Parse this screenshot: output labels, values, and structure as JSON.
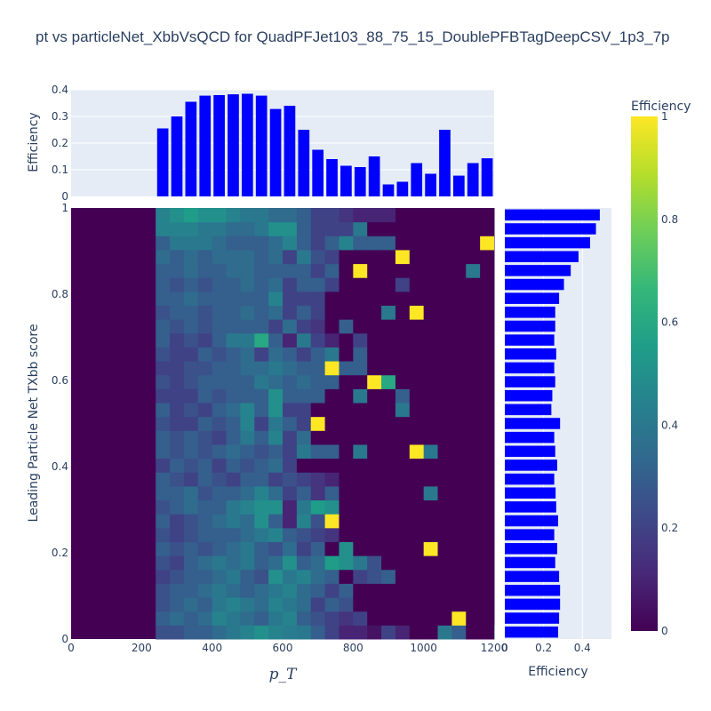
{
  "chart_data": {
    "type": "heatmap",
    "title": "pt vs particleNet_XbbVsQCD for QuadPFJet103_88_75_15_DoublePFBTagDeepCSV_1p3_7p",
    "xlabel": "p_T",
    "ylabel": "Leading Particle Net TXbb score",
    "xlim": [
      0,
      1200
    ],
    "ylim": [
      0,
      1
    ],
    "x_ticks": [
      "0",
      "200",
      "400",
      "600",
      "800",
      "1000",
      "1200"
    ],
    "y_ticks": [
      "0",
      "0.2",
      "0.4",
      "0.6",
      "0.8",
      "1"
    ],
    "colorbar": {
      "title": "Efficiency",
      "range": [
        0,
        1
      ],
      "ticks": [
        "0",
        "0.2",
        "0.4",
        "0.6",
        "0.8",
        "1"
      ]
    },
    "top_histogram": {
      "ylabel": "Efficiency",
      "ylim": [
        0,
        0.4
      ],
      "y_ticks": [
        "0",
        "0.1",
        "0.2",
        "0.3",
        "0.4"
      ],
      "bin_width": 40,
      "x_start": 0,
      "values": [
        0,
        0,
        0,
        0,
        0,
        0,
        0.255,
        0.3,
        0.355,
        0.378,
        0.38,
        0.383,
        0.385,
        0.378,
        0.328,
        0.34,
        0.25,
        0.175,
        0.14,
        0.115,
        0.11,
        0.15,
        0.045,
        0.055,
        0.125,
        0.085,
        0.25,
        0.078,
        0.125,
        0.143
      ],
      "color": "#0000ff"
    },
    "right_histogram": {
      "xlabel": "Efficiency",
      "xlim": [
        0,
        0.55
      ],
      "x_ticks": [
        "0",
        "0.2",
        "0.4"
      ],
      "bin_height": 0.0333,
      "values": [
        0.275,
        0.28,
        0.285,
        0.285,
        0.28,
        0.26,
        0.27,
        0.255,
        0.275,
        0.265,
        0.262,
        0.255,
        0.27,
        0.26,
        0.255,
        0.285,
        0.24,
        0.245,
        0.26,
        0.255,
        0.265,
        0.255,
        0.26,
        0.26,
        0.28,
        0.305,
        0.34,
        0.38,
        0.44,
        0.47,
        0.49
      ],
      "color": "#0000ff"
    },
    "heatmap": {
      "x_bin_width": 40,
      "y_bin_height": 0.0333,
      "columns_start": 240,
      "rows_bottom_to_top": [
        [
          0.25,
          0.25,
          0.3,
          0.3,
          0.35,
          0.4,
          0.45,
          0.5,
          0.45,
          0.42,
          0.4,
          0.3,
          0.2,
          0.1,
          0.1,
          0.05,
          0.2,
          0.1,
          0,
          0,
          0.4,
          0.3,
          0,
          0,
          0.3
        ],
        [
          0.3,
          0.35,
          0.3,
          0.35,
          0.45,
          0.4,
          0.35,
          0.3,
          0.4,
          0.45,
          0.3,
          0.25,
          0.2,
          0.15,
          0.2,
          0,
          0,
          0,
          0,
          0,
          0,
          1,
          0,
          0,
          0
        ],
        [
          0.25,
          0.3,
          0.35,
          0.3,
          0.4,
          0.45,
          0.4,
          0.35,
          0.45,
          0.4,
          0.35,
          0.2,
          0.3,
          0.25,
          0,
          0,
          0,
          0,
          0,
          0,
          0,
          0,
          0,
          0,
          0
        ],
        [
          0.25,
          0.3,
          0.3,
          0.35,
          0.4,
          0.35,
          0.3,
          0.35,
          0.4,
          0.45,
          0.35,
          0.3,
          0.2,
          0.3,
          0,
          0,
          0,
          0,
          0,
          0,
          0,
          0,
          0,
          0,
          0
        ],
        [
          0.2,
          0.25,
          0.3,
          0.3,
          0.35,
          0.4,
          0.3,
          0.25,
          0.5,
          0.4,
          0.45,
          0.35,
          0.3,
          0,
          0.2,
          0.25,
          0.3,
          0,
          0,
          0,
          0,
          0,
          0,
          0,
          0
        ],
        [
          0.25,
          0.2,
          0.3,
          0.35,
          0.4,
          0.35,
          0.4,
          0.3,
          0.35,
          0.5,
          0.3,
          0.35,
          0.55,
          0.5,
          0.4,
          0.25,
          0,
          0,
          0,
          0,
          0,
          0,
          0,
          0,
          0
        ],
        [
          0.3,
          0.25,
          0.3,
          0.25,
          0.3,
          0.35,
          0.4,
          0.3,
          0.25,
          0.35,
          0.2,
          0.3,
          0,
          0.5,
          0,
          0,
          0,
          0,
          0,
          1,
          0,
          0,
          0,
          0,
          0
        ],
        [
          0.25,
          0.2,
          0.25,
          0.3,
          0.3,
          0.3,
          0.35,
          0.4,
          0.45,
          0.3,
          0.25,
          0.2,
          0.15,
          0,
          0,
          0,
          0,
          0,
          0,
          0,
          0,
          0,
          0,
          0,
          0
        ],
        [
          0.3,
          0.2,
          0.25,
          0.3,
          0.35,
          0.4,
          0.35,
          0.5,
          0.3,
          0.1,
          0.45,
          0.25,
          1,
          0,
          0,
          0,
          0,
          0,
          0,
          0,
          0,
          0,
          0,
          0,
          0
        ],
        [
          0.25,
          0.3,
          0.35,
          0.3,
          0.3,
          0.4,
          0.45,
          0.5,
          0.5,
          0.1,
          0.4,
          0.55,
          0.5,
          0,
          0,
          0,
          0,
          0,
          0,
          0,
          0,
          0,
          0,
          0,
          0
        ],
        [
          0.3,
          0.3,
          0.35,
          0.25,
          0.3,
          0.3,
          0.35,
          0.45,
          0.35,
          0.2,
          0.3,
          0.15,
          0.3,
          0,
          0,
          0,
          0,
          0,
          0,
          0.4,
          0,
          0,
          0,
          0,
          0
        ],
        [
          0.3,
          0.25,
          0.2,
          0.3,
          0.25,
          0.2,
          0.3,
          0.3,
          0.2,
          0.25,
          0.2,
          0.15,
          0.1,
          0,
          0,
          0,
          0,
          0,
          0,
          0,
          0,
          0,
          0,
          0,
          0
        ],
        [
          0.2,
          0.3,
          0.25,
          0.3,
          0.2,
          0.3,
          0.25,
          0.3,
          0.35,
          0.2,
          0,
          0,
          0,
          0,
          0,
          0,
          0,
          0,
          0,
          0,
          0,
          0,
          0,
          0,
          0
        ],
        [
          0.3,
          0.25,
          0.3,
          0.25,
          0.3,
          0.35,
          0.3,
          0.25,
          0.3,
          0.2,
          0.4,
          0.3,
          0.3,
          0,
          0.4,
          0,
          0,
          0,
          1,
          0.4,
          0,
          0,
          0,
          0,
          0
        ],
        [
          0.3,
          0.25,
          0.3,
          0.25,
          0.2,
          0.3,
          0.4,
          0.3,
          0.45,
          0.2,
          0.35,
          0,
          0,
          0,
          0,
          0,
          0,
          0,
          0,
          0,
          0,
          0,
          0,
          0,
          0
        ],
        [
          0.25,
          0.2,
          0.2,
          0.3,
          0.25,
          0.3,
          0.45,
          0.2,
          0.4,
          0.3,
          0.2,
          1,
          0,
          0,
          0,
          0,
          0,
          0,
          0,
          0,
          0,
          0,
          0,
          0,
          0
        ],
        [
          0.3,
          0.2,
          0.25,
          0.2,
          0.3,
          0.35,
          0.45,
          0.3,
          0.5,
          0.2,
          0.2,
          0,
          0,
          0,
          0,
          0,
          0,
          0.4,
          0,
          0,
          0,
          0,
          0,
          0,
          0
        ],
        [
          0.2,
          0.2,
          0.2,
          0.3,
          0.25,
          0.3,
          0.3,
          0.3,
          0.5,
          0.3,
          0.3,
          0.3,
          0,
          0,
          0.4,
          0,
          0,
          0.3,
          0,
          0,
          0,
          0,
          0,
          0,
          0
        ],
        [
          0.25,
          0.2,
          0.25,
          0.3,
          0.3,
          0.3,
          0.3,
          0.4,
          0.35,
          0.3,
          0.35,
          0.3,
          0.3,
          0,
          0,
          1,
          0.6,
          0,
          0,
          0,
          0,
          0,
          0,
          0,
          0
        ],
        [
          0.2,
          0.2,
          0.25,
          0.25,
          0.3,
          0.3,
          0.35,
          0.35,
          0.4,
          0.35,
          0.3,
          0.3,
          1,
          0.3,
          0.3,
          0,
          0,
          0,
          0,
          0,
          0,
          0,
          0,
          0,
          0
        ],
        [
          0.25,
          0.2,
          0.2,
          0.3,
          0.25,
          0.3,
          0.35,
          0.2,
          0.35,
          0.3,
          0.2,
          0.3,
          0.4,
          0,
          0.3,
          0,
          0,
          0,
          0,
          0,
          0,
          0,
          0,
          0,
          0
        ],
        [
          0.3,
          0.2,
          0.25,
          0.2,
          0.3,
          0.4,
          0.4,
          0.6,
          0.3,
          0.1,
          0.4,
          0.2,
          0.1,
          0,
          0.2,
          0,
          0,
          0,
          0,
          0,
          0,
          0,
          0,
          0,
          0
        ],
        [
          0.3,
          0.25,
          0.3,
          0.25,
          0.3,
          0.3,
          0.3,
          0.3,
          0.2,
          0.35,
          0.2,
          0.15,
          0,
          0.3,
          0,
          0,
          0,
          0,
          0,
          0,
          0,
          0,
          0,
          0,
          0
        ],
        [
          0.25,
          0.3,
          0.3,
          0.25,
          0.3,
          0.3,
          0.35,
          0.3,
          0.35,
          0.2,
          0.3,
          0.2,
          0,
          0,
          0,
          0,
          0.4,
          0,
          1,
          0,
          0,
          0,
          0,
          0,
          0
        ],
        [
          0.3,
          0.3,
          0.35,
          0.3,
          0.3,
          0.3,
          0.3,
          0.3,
          0.45,
          0.2,
          0.2,
          0.2,
          0,
          0,
          0,
          0,
          0,
          0,
          0,
          0,
          0,
          0,
          0,
          0,
          0
        ],
        [
          0.3,
          0.25,
          0.3,
          0.25,
          0.3,
          0.3,
          0.35,
          0.3,
          0.35,
          0.2,
          0.3,
          0.3,
          0.2,
          0,
          0,
          0,
          0,
          0.2,
          0,
          0,
          0,
          0,
          0,
          0,
          0
        ],
        [
          0.3,
          0.3,
          0.35,
          0.3,
          0.3,
          0.35,
          0.35,
          0.3,
          0.3,
          0.3,
          0.3,
          0.2,
          0.3,
          0,
          1,
          0,
          0,
          0,
          0,
          0,
          0,
          0,
          0.4,
          0,
          0
        ],
        [
          0.35,
          0.3,
          0.35,
          0.3,
          0.35,
          0.35,
          0.35,
          0.3,
          0.35,
          0.2,
          0.4,
          0.25,
          0.2,
          0,
          0,
          0,
          0,
          1,
          0,
          0,
          0,
          0,
          0,
          0,
          0
        ],
        [
          0.3,
          0.4,
          0.4,
          0.4,
          0.35,
          0.3,
          0.3,
          0.3,
          0.35,
          0.45,
          0.3,
          0.2,
          0.3,
          0.45,
          0.3,
          0.3,
          0.3,
          0,
          0,
          0,
          0,
          0,
          0,
          1,
          0
        ],
        [
          0.45,
          0.45,
          0.45,
          0.4,
          0.4,
          0.35,
          0.35,
          0.4,
          0.5,
          0.5,
          0.3,
          0.2,
          0.2,
          0.2,
          0.4,
          0,
          0,
          0,
          0,
          0,
          0,
          0,
          0,
          0,
          0
        ],
        [
          0.45,
          0.5,
          0.55,
          0.5,
          0.5,
          0.45,
          0.4,
          0.4,
          0.35,
          0.35,
          0.3,
          0.2,
          0.2,
          0.15,
          0.1,
          0.1,
          0.1,
          0,
          0,
          0,
          0,
          0,
          0,
          0,
          0
        ]
      ]
    }
  }
}
